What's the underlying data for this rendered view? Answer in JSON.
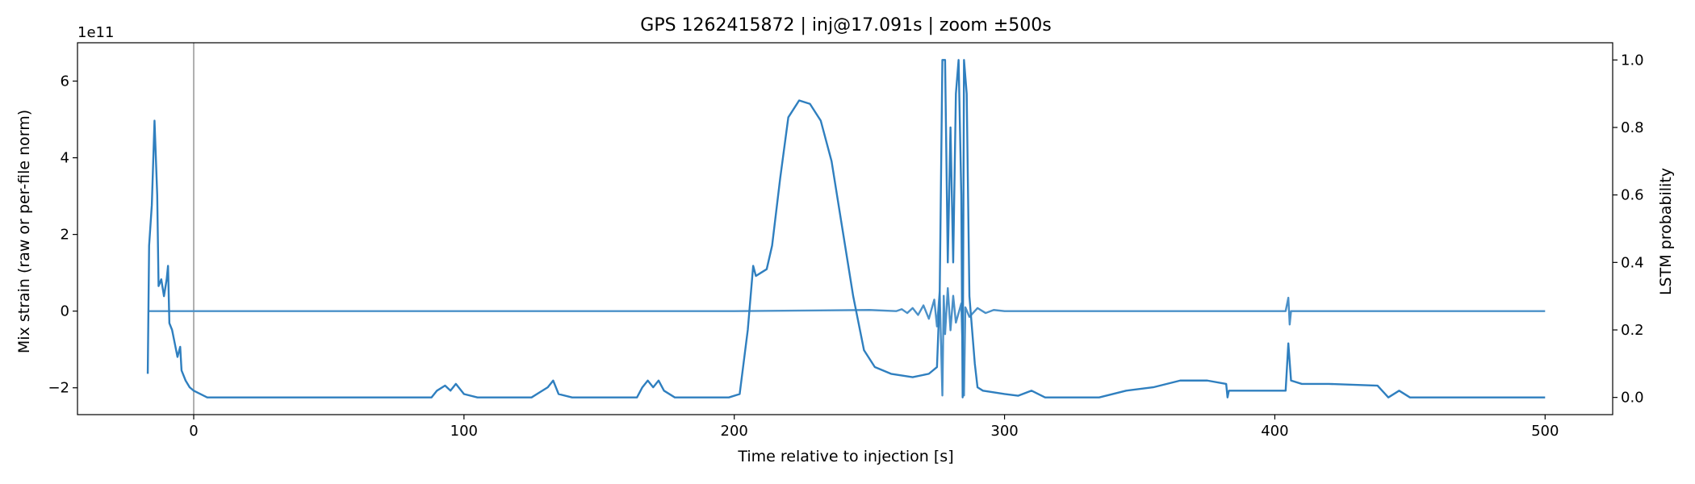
{
  "chart_data": {
    "type": "line",
    "title": "GPS 1262415872 | inj@17.091s | zoom ±500s",
    "xlabel": "Time relative to injection [s]",
    "ylabel": "Mix strain (raw or per-file norm)",
    "y2label": "LSTM probability",
    "y_offset_label": "1e11",
    "xlim": [
      -43,
      525
    ],
    "xticks": [
      0,
      100,
      200,
      300,
      400,
      500
    ],
    "ylim": [
      -2.7,
      7.0
    ],
    "yticks": [
      {
        "value": -2,
        "label": "−2"
      },
      0,
      2,
      4,
      6
    ],
    "y2lim": [
      -0.051,
      1.051
    ],
    "y2ticks": [
      {
        "value": 0,
        "label": "0.0"
      },
      0.2,
      0.4,
      0.6,
      0.8,
      {
        "value": 1,
        "label": "1.0"
      }
    ],
    "vlines": [
      0
    ],
    "vline_color": "#b0b0b0",
    "grid": false,
    "series": [
      {
        "color": "#4a90c8",
        "axis": "y",
        "x": [
          -17,
          0,
          100,
          200,
          250,
          260,
          262,
          264,
          266,
          268,
          270,
          272,
          274,
          275,
          276,
          277,
          277.5,
          278,
          279,
          280,
          281,
          282,
          284,
          285,
          285.5,
          287,
          290,
          293,
          296,
          300,
          404,
          405,
          405.5,
          406,
          500
        ],
        "values": [
          0,
          0,
          0,
          0,
          0.03,
          0,
          0.05,
          -0.05,
          0.08,
          -0.1,
          0.15,
          -0.2,
          0.3,
          -0.4,
          0.5,
          -2.2,
          0.4,
          -0.6,
          0.6,
          -0.5,
          0.4,
          -0.3,
          0.2,
          -2.2,
          0.1,
          -0.15,
          0.08,
          -0.05,
          0.03,
          0,
          0,
          0.35,
          -0.35,
          0,
          0
        ]
      },
      {
        "color": "#2f7fbf",
        "axis": "y2",
        "x": [
          -17,
          -16.5,
          -15.5,
          -14.5,
          -13.5,
          -13,
          -12,
          -11,
          -10,
          -9.5,
          -9,
          -8,
          -7,
          -6,
          -5,
          -4.5,
          -3,
          -1.5,
          0,
          5,
          50,
          88,
          90,
          93,
          95,
          97,
          100,
          105,
          125,
          128,
          131,
          133,
          135,
          140,
          164,
          166,
          168,
          170,
          172,
          174,
          178,
          198,
          202,
          205,
          207,
          208,
          212,
          214,
          217,
          220,
          224,
          228,
          232,
          236,
          240,
          244,
          248,
          252,
          258,
          266,
          272,
          275,
          276,
          277,
          278,
          279,
          280,
          281,
          282,
          283,
          284,
          284.5,
          285,
          286,
          287,
          288,
          289,
          290,
          292,
          300,
          305,
          310,
          315,
          335,
          345,
          355,
          365,
          375,
          382,
          382.5,
          383,
          404,
          405,
          406,
          410,
          420,
          438,
          442,
          446,
          450,
          500
        ],
        "values": [
          0.07,
          0.45,
          0.57,
          0.82,
          0.6,
          0.33,
          0.35,
          0.3,
          0.35,
          0.39,
          0.22,
          0.2,
          0.16,
          0.12,
          0.15,
          0.08,
          0.05,
          0.03,
          0.02,
          0,
          0,
          0,
          0.02,
          0.035,
          0.02,
          0.04,
          0.01,
          0,
          0,
          0.015,
          0.03,
          0.05,
          0.01,
          0,
          0,
          0.03,
          0.05,
          0.03,
          0.05,
          0.02,
          0,
          0,
          0.01,
          0.2,
          0.39,
          0.36,
          0.38,
          0.45,
          0.65,
          0.83,
          0.88,
          0.87,
          0.82,
          0.7,
          0.5,
          0.3,
          0.14,
          0.09,
          0.07,
          0.06,
          0.07,
          0.09,
          0.3,
          1.0,
          1.0,
          0.4,
          0.8,
          0.4,
          0.9,
          1.0,
          0.6,
          0,
          1.0,
          0.9,
          0.3,
          0.2,
          0.1,
          0.03,
          0.02,
          0.01,
          0.005,
          0.02,
          0,
          0,
          0.02,
          0.03,
          0.05,
          0.05,
          0.04,
          0,
          0.02,
          0.02,
          0.16,
          0.05,
          0.04,
          0.04,
          0.035,
          0,
          0.02,
          0,
          0
        ]
      }
    ]
  }
}
